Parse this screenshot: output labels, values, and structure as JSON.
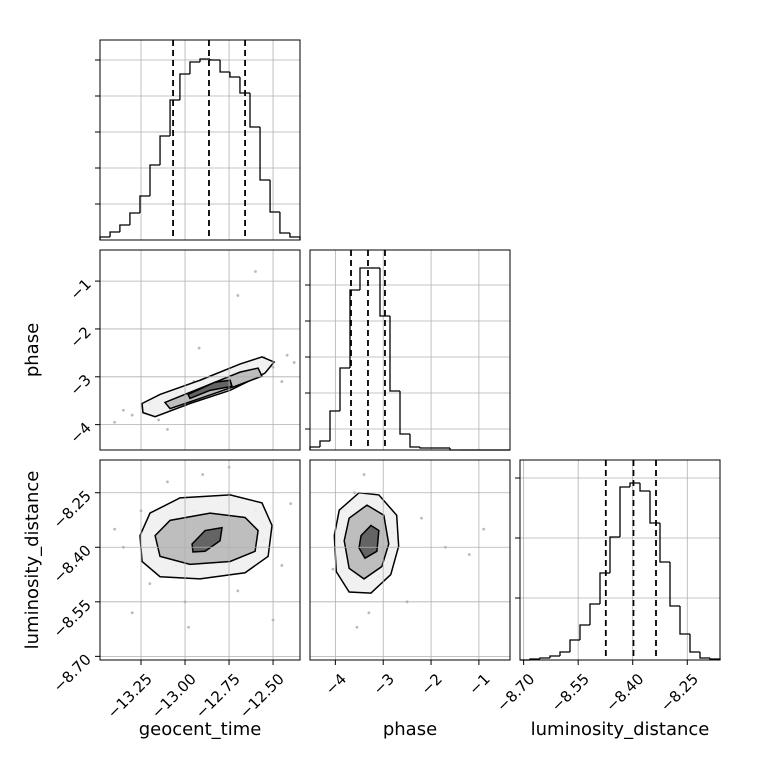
{
  "chart_data": {
    "type": "corner",
    "grid": true,
    "line_color": "#000000",
    "grid_color": "#b0b0b0",
    "point_color": "#8c8c8c",
    "contour_fills": [
      "#f0f0f0",
      "#b8b8b8",
      "#5a5a5a"
    ],
    "parameters": [
      {
        "name": "geocent_time",
        "lim": [
          -13.483,
          -12.347
        ],
        "ticks": [
          {
            "value": -13.25,
            "label": "−13.25"
          },
          {
            "value": -13,
            "label": "−13.00"
          },
          {
            "value": -12.75,
            "label": "−12.75"
          },
          {
            "value": -12.5,
            "label": "−12.50"
          }
        ]
      },
      {
        "name": "phase",
        "lim": [
          -4.53,
          -0.35
        ],
        "ticks": [
          {
            "value": -4,
            "label": "−4"
          },
          {
            "value": -3,
            "label": "−3"
          },
          {
            "value": -2,
            "label": "−2"
          },
          {
            "value": -1,
            "label": "−1"
          }
        ]
      },
      {
        "name": "luminosity_distance",
        "lim": [
          -8.71,
          -8.16
        ],
        "ticks": [
          {
            "value": -8.7,
            "label": "−8.70"
          },
          {
            "value": -8.55,
            "label": "−8.55"
          },
          {
            "value": -8.4,
            "label": "−8.40"
          },
          {
            "value": -8.25,
            "label": "−8.25"
          }
        ]
      }
    ],
    "histograms": [
      {
        "bins": [
          -13.483,
          -13.426,
          -13.37,
          -13.313,
          -13.256,
          -13.199,
          -13.142,
          -13.085,
          -13.029,
          -12.972,
          -12.915,
          -12.858,
          -12.801,
          -12.745,
          -12.688,
          -12.631,
          -12.574,
          -12.517,
          -12.461,
          -12.404,
          -12.347
        ],
        "counts": [
          3,
          8,
          15,
          27,
          44,
          75,
          104,
          140,
          166,
          178,
          181,
          180,
          168,
          163,
          147,
          113,
          60,
          28,
          7,
          3
        ],
        "ylim": [
          0,
          200
        ],
        "yticks": [
          36,
          72,
          108,
          144,
          180
        ],
        "quantiles": [
          -13.068,
          -12.864,
          -12.659
        ]
      },
      {
        "bins": [
          -4.53,
          -4.321,
          -4.112,
          -3.903,
          -3.694,
          -3.485,
          -3.276,
          -3.067,
          -2.858,
          -2.649,
          -2.44,
          -2.231,
          -2.022,
          -1.813,
          -1.604,
          -1.395,
          -1.186,
          -0.977,
          -0.768,
          -0.559,
          -0.35
        ],
        "counts": [
          3,
          9,
          39,
          82,
          160,
          182,
          182,
          134,
          59,
          16,
          3,
          2,
          2,
          2,
          0,
          0,
          0,
          0,
          0,
          0
        ],
        "ylim": [
          0,
          200
        ],
        "yticks": [
          21,
          57,
          93,
          129,
          165
        ],
        "quantiles": [
          -3.673,
          -3.318,
          -2.963
        ]
      },
      {
        "bins": [
          -8.71,
          -8.6825,
          -8.655,
          -8.6275,
          -8.6,
          -8.5725,
          -8.545,
          -8.5175,
          -8.49,
          -8.4625,
          -8.435,
          -8.4075,
          -8.38,
          -8.3525,
          -8.325,
          -8.2975,
          -8.27,
          -8.2425,
          -8.215,
          -8.1875,
          -8.16
        ],
        "counts": [
          0,
          1,
          2,
          4,
          8,
          20,
          35,
          56,
          87,
          123,
          173,
          177,
          169,
          137,
          98,
          54,
          26,
          8,
          2,
          1
        ],
        "ylim": [
          0,
          200
        ],
        "yticks": [
          62,
          122,
          182
        ],
        "quantiles": [
          -8.474,
          -8.398,
          -8.336
        ]
      }
    ],
    "pairs": [
      {
        "points": {
          "x": [
            -13.4,
            -13.3,
            -13.2,
            -13.15,
            -13.05,
            -13.0,
            -12.95,
            -12.9,
            -12.85,
            -12.8,
            -12.75,
            -12.7,
            -12.65,
            -12.6,
            -12.55,
            -12.5,
            -12.42,
            -12.38,
            -13.35,
            -12.92,
            -12.7,
            -12.6,
            -13.1,
            -12.45
          ],
          "y": [
            -3.95,
            -3.8,
            -3.55,
            -3.9,
            -3.35,
            -3.6,
            -3.1,
            -3.4,
            -3.0,
            -3.25,
            -2.85,
            -3.05,
            -2.75,
            -2.95,
            -2.6,
            -2.8,
            -2.55,
            -2.7,
            -3.7,
            -2.4,
            -1.3,
            -0.8,
            -4.1,
            -3.1
          ]
        },
        "contours": [
          {
            "x": [
              -13.244,
              -13.142,
              -12.915,
              -12.688,
              -12.563,
              -12.494,
              -12.546,
              -12.744,
              -12.972,
              -13.17,
              -13.239
            ],
            "y": [
              -3.558,
              -3.368,
              -3.072,
              -2.733,
              -2.585,
              -2.691,
              -2.924,
              -3.283,
              -3.558,
              -3.833,
              -3.749
            ]
          },
          {
            "x": [
              -13.114,
              -12.915,
              -12.688,
              -12.585,
              -12.563,
              -12.716,
              -12.915,
              -13.085
            ],
            "y": [
              -3.537,
              -3.241,
              -2.903,
              -2.818,
              -2.987,
              -3.199,
              -3.453,
              -3.664
            ]
          },
          {
            "x": [
              -12.983,
              -12.83,
              -12.744,
              -12.733,
              -12.858,
              -12.972
            ],
            "y": [
              -3.368,
              -3.114,
              -3.072,
              -3.199,
              -3.283,
              -3.453
            ]
          }
        ]
      },
      {
        "points": {
          "x": [
            -13.35,
            -13.25,
            -13.2,
            -13.1,
            -13.05,
            -13.0,
            -12.95,
            -12.9,
            -12.85,
            -12.8,
            -12.75,
            -12.7,
            -12.65,
            -12.6,
            -12.55,
            -12.45,
            -12.4,
            -13.4,
            -12.98,
            -12.75,
            -13.3,
            -12.5
          ],
          "y": [
            -8.4,
            -8.3,
            -8.5,
            -8.22,
            -8.45,
            -8.55,
            -8.3,
            -8.2,
            -8.48,
            -8.36,
            -8.25,
            -8.52,
            -8.42,
            -8.3,
            -8.38,
            -8.45,
            -8.28,
            -8.35,
            -8.62,
            -8.18,
            -8.58,
            -8.6
          ]
        },
        "contours": [
          {
            "x": [
              -13.256,
              -13.199,
              -13.028,
              -12.744,
              -12.563,
              -12.506,
              -12.528,
              -12.659,
              -12.915,
              -13.142,
              -13.244
            ],
            "y": [
              -8.368,
              -8.306,
              -8.264,
              -8.256,
              -8.278,
              -8.34,
              -8.425,
              -8.47,
              -8.487,
              -8.481,
              -8.439
            ]
          },
          {
            "x": [
              -13.17,
              -13.085,
              -12.858,
              -12.659,
              -12.585,
              -12.602,
              -12.744,
              -12.972,
              -13.142
            ],
            "y": [
              -8.368,
              -8.326,
              -8.306,
              -8.318,
              -8.354,
              -8.411,
              -8.439,
              -8.447,
              -8.425
            ]
          },
          {
            "x": [
              -12.96,
              -12.886,
              -12.79,
              -12.801,
              -12.886,
              -12.955
            ],
            "y": [
              -8.391,
              -8.354,
              -8.346,
              -8.382,
              -8.411,
              -8.413
            ]
          }
        ]
      },
      {
        "points": {
          "x": [
            -3.9,
            -3.8,
            -3.7,
            -3.6,
            -3.5,
            -3.4,
            -3.3,
            -3.2,
            -3.1,
            -3.0,
            -2.9,
            -2.8,
            -4.05,
            -3.55,
            -3.25,
            -2.2,
            -1.7,
            -0.9,
            -1.2,
            -2.5
          ],
          "y": [
            -8.4,
            -8.3,
            -8.52,
            -8.25,
            -8.45,
            -8.2,
            -8.58,
            -8.33,
            -8.48,
            -8.28,
            -8.42,
            -8.36,
            -8.46,
            -8.62,
            -8.15,
            -8.32,
            -8.4,
            -8.35,
            -8.42,
            -8.55
          ]
        },
        "contours": [
          {
            "x": [
              -4.022,
              -3.919,
              -3.505,
              -3.091,
              -2.718,
              -2.677,
              -2.842,
              -3.256,
              -3.712,
              -3.981
            ],
            "y": [
              -8.368,
              -8.298,
              -8.25,
              -8.256,
              -8.312,
              -8.397,
              -8.475,
              -8.526,
              -8.523,
              -8.467
            ]
          },
          {
            "x": [
              -3.815,
              -3.712,
              -3.339,
              -2.987,
              -2.884,
              -3.029,
              -3.401,
              -3.712
            ],
            "y": [
              -8.382,
              -8.32,
              -8.284,
              -8.312,
              -8.391,
              -8.453,
              -8.487,
              -8.458
            ]
          },
          {
            "x": [
              -3.463,
              -3.256,
              -3.091,
              -3.132,
              -3.381,
              -3.505
            ],
            "y": [
              -8.368,
              -8.34,
              -8.354,
              -8.411,
              -8.43,
              -8.402
            ]
          }
        ]
      }
    ]
  }
}
